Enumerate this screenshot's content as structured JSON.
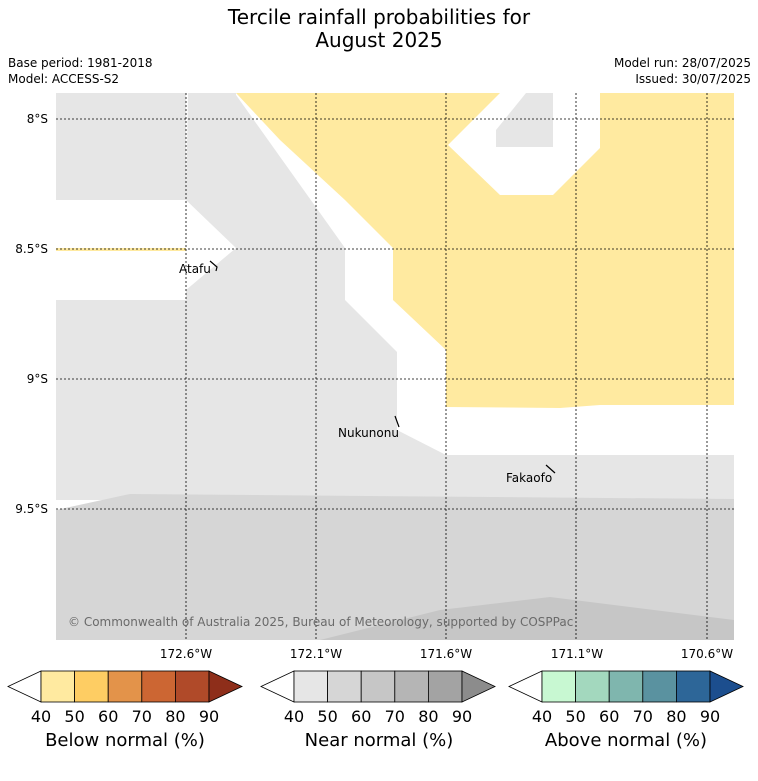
{
  "title": {
    "line1": "Tercile rainfall probabilities for",
    "line2": "August 2025"
  },
  "info": {
    "base_period": "Base period: 1981-2018",
    "model": "Model: ACCESS-S2",
    "model_run": "Model run: 28/07/2025",
    "issued": "Issued: 30/07/2025"
  },
  "map": {
    "lat_labels": [
      "8°S",
      "8.5°S",
      "9°S",
      "9.5°S"
    ],
    "lon_labels": [
      "172.6°W",
      "172.1°W",
      "171.6°W",
      "171.1°W",
      "170.6°W"
    ],
    "places": [
      "Atafu",
      "Nukunonu",
      "Fakaofo"
    ],
    "copyright": "© Commonwealth of Australia 2025, Bureau of Meteorology, supported by COSPPac",
    "colors": {
      "below_40": "#ffeaa0",
      "near_40": "#e6e6e6",
      "near_50": "#d6d6d6",
      "near_60": "#c6c6c6"
    }
  },
  "colorbars": [
    {
      "label": "Below normal (%)",
      "ticks": [
        "40",
        "50",
        "60",
        "70",
        "80",
        "90"
      ],
      "colors": [
        "#ffffff",
        "#ffeaa0",
        "#fecd63",
        "#e3934a",
        "#cc6633",
        "#b04a29",
        "#8e2e1a"
      ]
    },
    {
      "label": "Near normal (%)",
      "ticks": [
        "40",
        "50",
        "60",
        "70",
        "80",
        "90"
      ],
      "colors": [
        "#ffffff",
        "#e6e6e6",
        "#d6d6d6",
        "#c6c6c6",
        "#b5b5b5",
        "#a3a3a3",
        "#8c8c8c"
      ]
    },
    {
      "label": "Above normal (%)",
      "ticks": [
        "40",
        "50",
        "60",
        "70",
        "80",
        "90"
      ],
      "colors": [
        "#ffffff",
        "#c8f8d2",
        "#a3d8be",
        "#7fb6ae",
        "#5a92a0",
        "#2d6698",
        "#1c4e8e"
      ]
    }
  ]
}
